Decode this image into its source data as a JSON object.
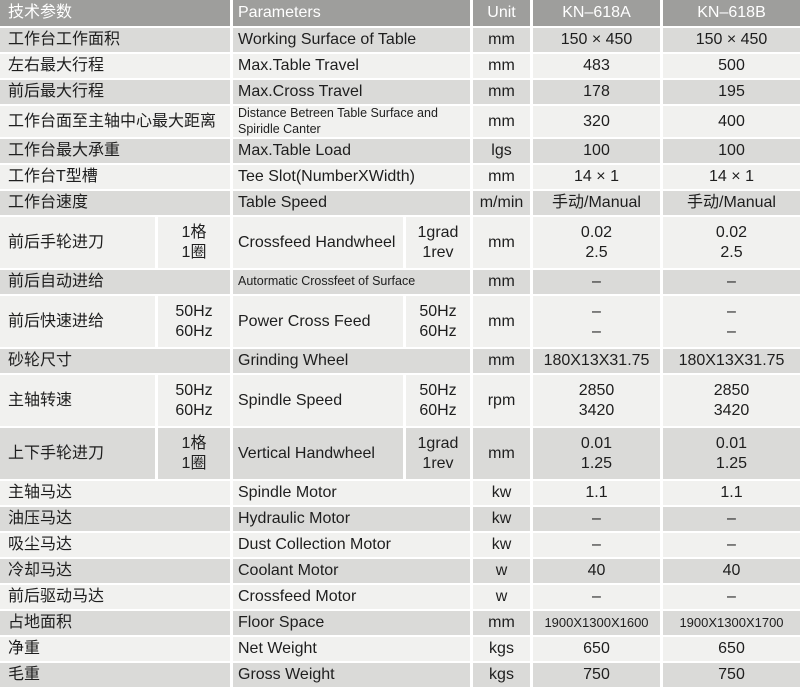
{
  "colors": {
    "header_bg": "#9e9e9c",
    "header_text": "#ffffff",
    "row_dark": "#dadad8",
    "row_light": "#f1f1ef",
    "divider": "#ffffff",
    "text": "#1e1e1e"
  },
  "header": {
    "cn": "技术参数",
    "en": "Parameters",
    "unit": "Unit",
    "model_a": "KN–618A",
    "model_b": "KN–618B"
  },
  "rows": [
    {
      "cn": "工作台工作面积",
      "en": "Working Surface of Table",
      "unit": "mm",
      "a": "150 × 450",
      "b": "150 × 450"
    },
    {
      "cn": "左右最大行程",
      "en": "Max.Table Travel",
      "unit": "mm",
      "a": "483",
      "b": "500"
    },
    {
      "cn": "前后最大行程",
      "en": "Max.Cross Travel",
      "unit": "mm",
      "a": "178",
      "b": "195"
    },
    {
      "cn": "工作台面至主轴中心最大距离",
      "en": "Distance Betreen Table Surface and Spiridle Canter",
      "unit": "mm",
      "a": "320",
      "b": "400"
    },
    {
      "cn": "工作台最大承重",
      "en": "Max.Table Load",
      "unit": "lgs",
      "a": "100",
      "b": "100"
    },
    {
      "cn": "工作台T型槽",
      "en": "Tee Slot(NumberXWidth)",
      "unit": "mm",
      "a": "14 × 1",
      "b": "14 × 1"
    },
    {
      "cn": "工作台速度",
      "en": "Table Speed",
      "unit": "m/min",
      "a": "手动/Manual",
      "b": "手动/Manual"
    },
    {
      "cn": "前后手轮进刀",
      "cn_sub": "1格\n1圈",
      "en": "Crossfeed Handwheel",
      "en_sub": "1grad\n1rev",
      "unit": "mm",
      "a": "0.02\n2.5",
      "b": "0.02\n2.5"
    },
    {
      "cn": "前后自动进给",
      "en": "Autormatic Crossfeet of Surface",
      "unit": "mm",
      "a": "–",
      "b": "–"
    },
    {
      "cn": "前后快速进给",
      "cn_sub": "50Hz\n60Hz",
      "en": "Power Cross Feed",
      "en_sub": "50Hz\n60Hz",
      "unit": "mm",
      "a": "–\n–",
      "b": "–\n–"
    },
    {
      "cn": "砂轮尺寸",
      "en": "Grinding Wheel",
      "unit": "mm",
      "a": "180X13X31.75",
      "b": "180X13X31.75"
    },
    {
      "cn": "主轴转速",
      "cn_sub": "50Hz\n60Hz",
      "en": "Spindle Speed",
      "en_sub": "50Hz\n60Hz",
      "unit": "rpm",
      "a": "2850\n3420",
      "b": "2850\n3420"
    },
    {
      "cn": "上下手轮进刀",
      "cn_sub": "1格\n1圈",
      "en": "Vertical Handwheel",
      "en_sub": "1grad\n1rev",
      "unit": "mm",
      "a": "0.01\n1.25",
      "b": "0.01\n1.25"
    },
    {
      "cn": "主轴马达",
      "en": "Spindle Motor",
      "unit": "kw",
      "a": "1.1",
      "b": "1.1"
    },
    {
      "cn": "油压马达",
      "en": "Hydraulic Motor",
      "unit": "kw",
      "a": "–",
      "b": "–"
    },
    {
      "cn": "吸尘马达",
      "en": "Dust Collection Motor",
      "unit": "kw",
      "a": "–",
      "b": "–"
    },
    {
      "cn": "冷却马达",
      "en": "Coolant Motor",
      "unit": "w",
      "a": "40",
      "b": "40"
    },
    {
      "cn": "前后驱动马达",
      "en": "Crossfeed Motor",
      "unit": "w",
      "a": "–",
      "b": "–"
    },
    {
      "cn": "占地面积",
      "en": "Floor Space",
      "unit": "mm",
      "a": "1900X1300X1600",
      "b": "1900X1300X1700"
    },
    {
      "cn": "净重",
      "en": "Net Weight",
      "unit": "kgs",
      "a": "650",
      "b": "650"
    },
    {
      "cn": "毛重",
      "en": "Gross Weight",
      "unit": "kgs",
      "a": "750",
      "b": "750"
    }
  ]
}
